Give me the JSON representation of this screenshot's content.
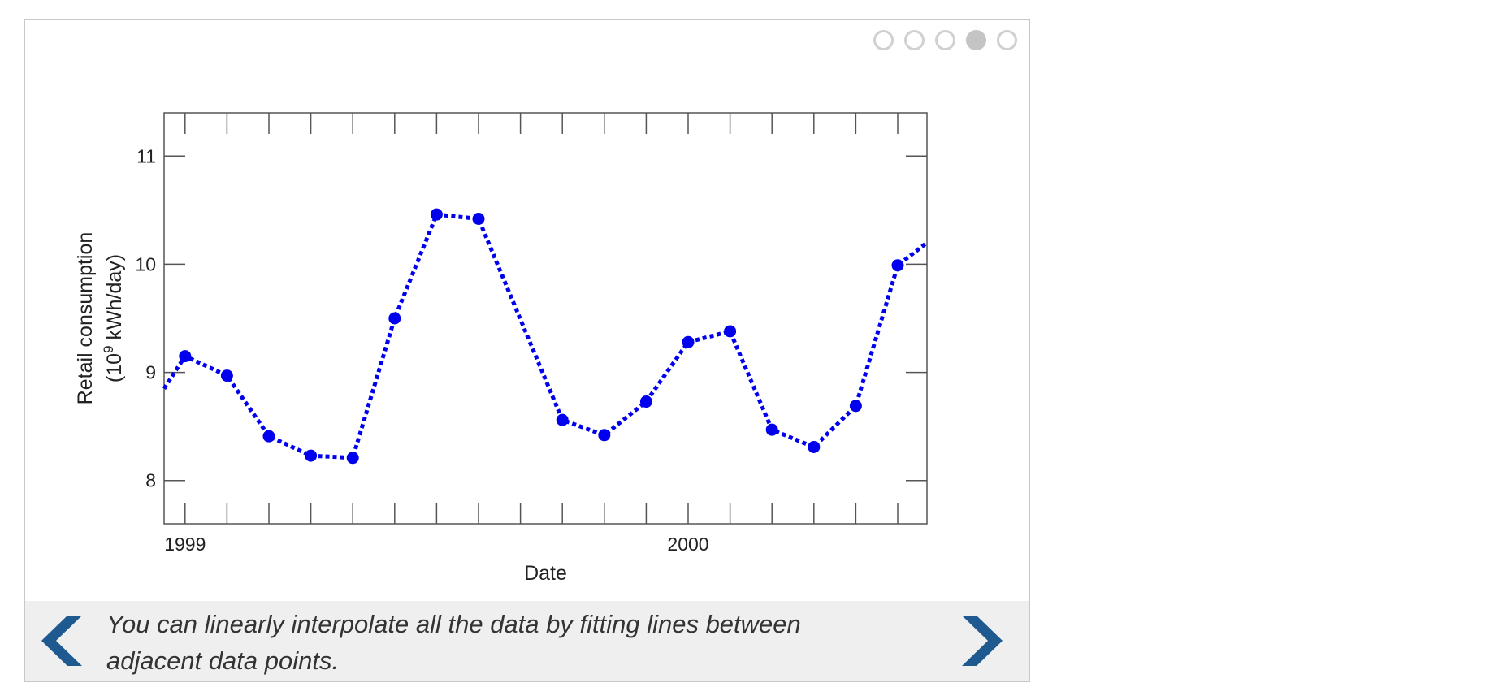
{
  "pager": {
    "dots": [
      {
        "state": "inactive"
      },
      {
        "state": "inactive"
      },
      {
        "state": "inactive"
      },
      {
        "state": "active"
      },
      {
        "state": "inactive"
      }
    ]
  },
  "caption": {
    "text": "You can linearly interpolate all the data by fitting lines between adjacent data points."
  },
  "nav": {
    "prev_icon": "chevron-left-icon",
    "next_icon": "chevron-right-icon",
    "color": "#1e5a8f"
  },
  "chart_data": {
    "type": "line",
    "title": "",
    "xlabel": "Date",
    "ylabel_line1": "Retail consumption",
    "ylabel_line2_pre": "(10",
    "ylabel_line2_sup": "9",
    "ylabel_line2_post": " kWh/day)",
    "x_tick_labels": [
      "1999",
      "2000"
    ],
    "y_tick_labels": [
      "8",
      "9",
      "10",
      "11"
    ],
    "ylim": [
      7.6,
      11.4
    ],
    "month_ticks": 18,
    "grid": false,
    "legend": "none",
    "series": [
      {
        "line_style": "dotted",
        "marker": "circle",
        "color": "#0000ee",
        "lead_in": 8.85,
        "lead_out": 10.2,
        "points": [
          {
            "month": 1,
            "value": 9.15
          },
          {
            "month": 2,
            "value": 8.97
          },
          {
            "month": 3,
            "value": 8.41
          },
          {
            "month": 4,
            "value": 8.23
          },
          {
            "month": 5,
            "value": 8.21
          },
          {
            "month": 6,
            "value": 9.5
          },
          {
            "month": 7,
            "value": 10.46
          },
          {
            "month": 8,
            "value": 10.42
          },
          {
            "month": 10,
            "value": 8.56
          },
          {
            "month": 11,
            "value": 8.42
          },
          {
            "month": 12,
            "value": 8.73
          },
          {
            "month": 13,
            "value": 9.28
          },
          {
            "month": 14,
            "value": 9.38
          },
          {
            "month": 15,
            "value": 8.47
          },
          {
            "month": 16,
            "value": 8.31
          },
          {
            "month": 17,
            "value": 8.69
          },
          {
            "month": 18,
            "value": 9.99
          }
        ]
      }
    ]
  }
}
